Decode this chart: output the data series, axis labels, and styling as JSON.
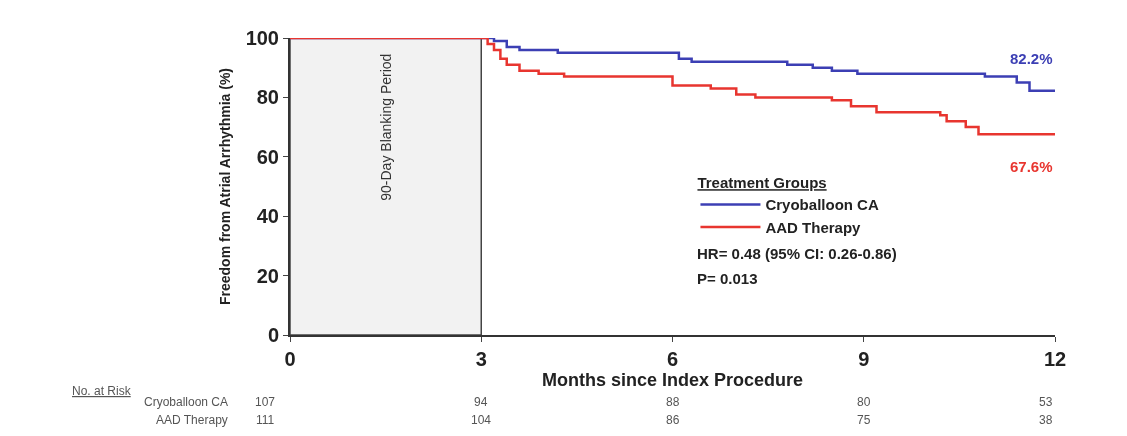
{
  "chart_data": {
    "type": "step",
    "xlabel": "Months since Index Procedure",
    "ylabel": "Freedom from Atrial Arrhythmia (%)",
    "legend_title": "Treatment Groups",
    "xlim": [
      0,
      12
    ],
    "xticks": [
      0,
      3,
      6,
      9,
      12
    ],
    "ylim": [
      0,
      100
    ],
    "yticks": [
      0,
      20,
      40,
      60,
      80,
      100
    ],
    "grid": false,
    "legend": "bottom right",
    "marker": "none",
    "line_style": "solid",
    "series": [
      {
        "name": "Cryoballoon CA",
        "color": "#3c3fb4",
        "x": [
          0,
          3.2,
          3.4,
          3.6,
          4.2,
          6.1,
          6.3,
          7.8,
          8.2,
          8.5,
          8.9,
          10.9,
          11.4,
          11.6,
          12
        ],
        "values": [
          100,
          99,
          97,
          96,
          95,
          93,
          92,
          91,
          90,
          89,
          88,
          87,
          85,
          82.2,
          82.2
        ]
      },
      {
        "name": "AAD Therapy",
        "color": "#e8352f",
        "x": [
          0,
          3.1,
          3.2,
          3.3,
          3.4,
          3.6,
          3.9,
          4.3,
          6,
          6.6,
          7,
          7.3,
          8.5,
          8.8,
          9.2,
          10.2,
          10.3,
          10.6,
          10.8,
          12
        ],
        "values": [
          100,
          98,
          96,
          93,
          91,
          89,
          88,
          87,
          84,
          83,
          81,
          80,
          79,
          77,
          75,
          74,
          72,
          70,
          67.6,
          67.6
        ]
      }
    ],
    "bands": [
      {
        "axis": "x",
        "from": 0,
        "to": 3,
        "label": "90-Day Blanking Period",
        "color": "#f2f2f2"
      }
    ],
    "annotations": [
      {
        "text": "82.2%",
        "x": 12,
        "y": 82.2
      },
      {
        "text": "67.6%",
        "x": 12,
        "y": 67.6
      },
      "HR= 0.48 (95% CI: 0.26-0.86)",
      "P= 0.013",
      "No. at Risk",
      "Cryoballoon CA",
      "107",
      "94",
      "88",
      "80",
      "53",
      "AAD Therapy",
      "111",
      "104",
      "86",
      "75",
      "38"
    ]
  }
}
